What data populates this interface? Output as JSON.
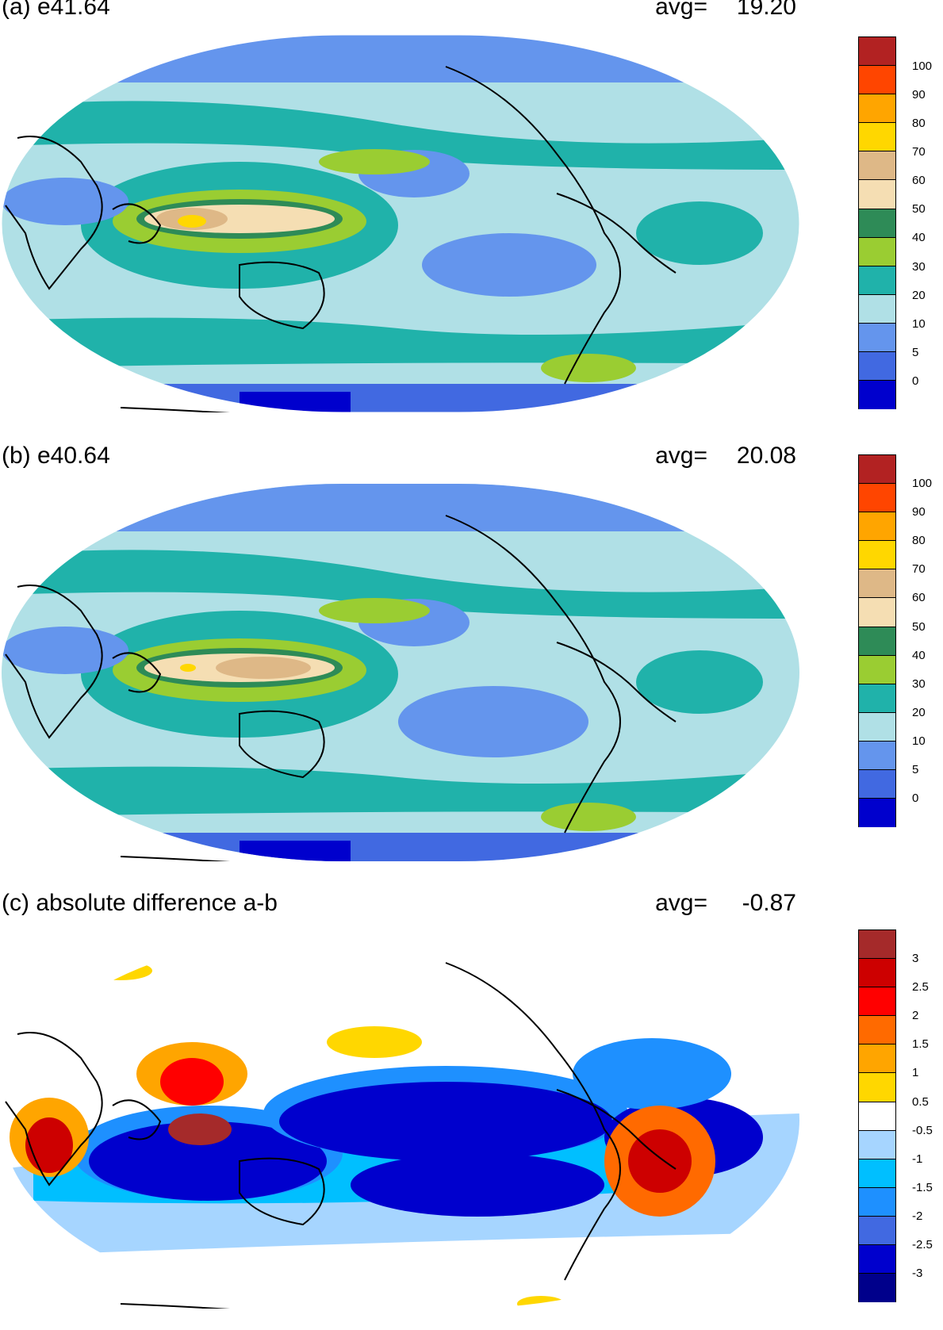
{
  "panels": [
    {
      "id": "a",
      "title": "(a) e41.64",
      "avg_label": "avg=",
      "avg_value": "19.20",
      "colorbar": {
        "labels": [
          "100",
          "90",
          "80",
          "70",
          "60",
          "50",
          "40",
          "30",
          "20",
          "10",
          "5",
          "0"
        ],
        "colors": [
          "#b22222",
          "#ff4500",
          "#ffa500",
          "#ffd700",
          "#deb887",
          "#f5deb3",
          "#2e8b57",
          "#9acd32",
          "#20b2aa",
          "#b0e0e6",
          "#6495ed",
          "#4169e1",
          "#0000cd"
        ]
      }
    },
    {
      "id": "b",
      "title": "(b) e40.64",
      "avg_label": "avg=",
      "avg_value": "20.08",
      "colorbar": {
        "labels": [
          "100",
          "90",
          "80",
          "70",
          "60",
          "50",
          "40",
          "30",
          "20",
          "10",
          "5",
          "0"
        ],
        "colors": [
          "#b22222",
          "#ff4500",
          "#ffa500",
          "#ffd700",
          "#deb887",
          "#f5deb3",
          "#2e8b57",
          "#9acd32",
          "#20b2aa",
          "#b0e0e6",
          "#6495ed",
          "#4169e1",
          "#0000cd"
        ]
      }
    },
    {
      "id": "c",
      "title": "(c) absolute difference a-b",
      "avg_label": "avg=",
      "avg_value": "-0.87",
      "colorbar": {
        "labels": [
          "3",
          "2.5",
          "2",
          "1.5",
          "1",
          "0.5",
          "-0.5",
          "-1",
          "-1.5",
          "-2",
          "-2.5",
          "-3"
        ],
        "colors": [
          "#a52a2a",
          "#cd0000",
          "#ff0000",
          "#ff6a00",
          "#ffa500",
          "#ffd700",
          "#ffffff",
          "#a6d5ff",
          "#00bfff",
          "#1e90ff",
          "#4169e1",
          "#0000cd",
          "#00008b"
        ]
      }
    }
  ]
}
